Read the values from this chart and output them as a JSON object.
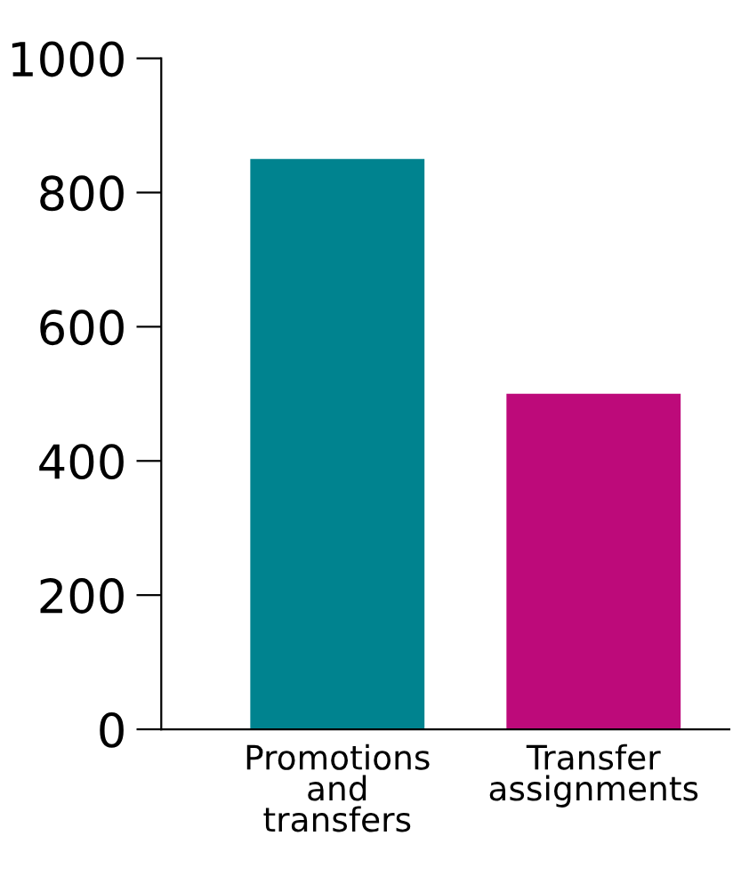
{
  "chart_data": {
    "type": "bar",
    "categories": [
      "Promotions\nand\ntransfers",
      "Transfer\nassignments"
    ],
    "values": [
      850,
      500
    ],
    "colors": [
      "#00838f",
      "#bd0a7a"
    ],
    "ylim": [
      0,
      1000
    ],
    "yticks": [
      0,
      200,
      400,
      600,
      800,
      1000
    ],
    "grid": false,
    "legend": false
  }
}
